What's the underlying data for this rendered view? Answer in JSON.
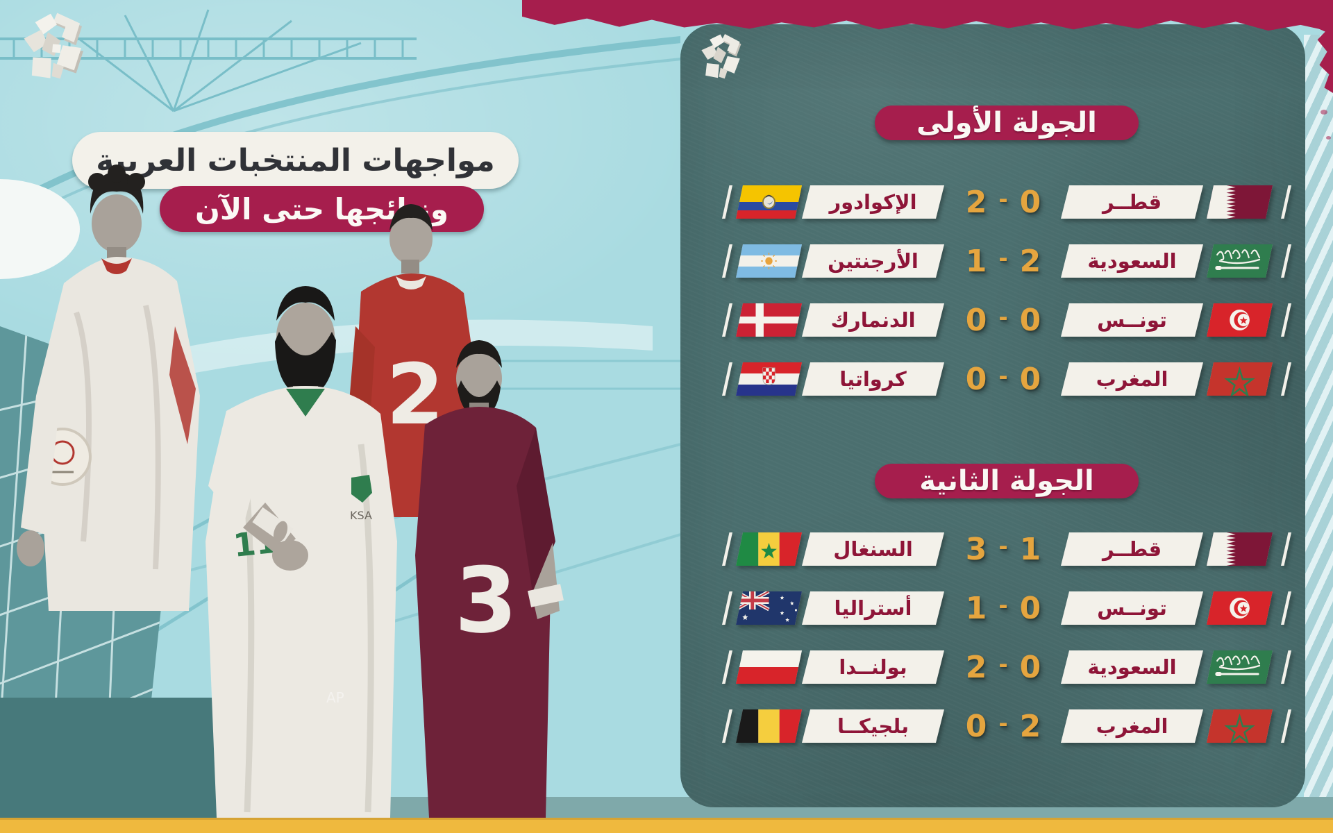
{
  "page": {
    "title_line1": "مواجهات المنتخبات العربية",
    "title_line2": "ونتائجها حتى الآن",
    "score_separator": "-"
  },
  "collage": {
    "jersey_number_morocco": "2",
    "jersey_number_qatar": "3",
    "jersey_number_saudi": "11",
    "saudi_badge": "KSA",
    "photo_credit": "AP"
  },
  "colors": {
    "crimson": "#A61E4D",
    "maroon_text": "#8E1538",
    "gold": "#E5A53F",
    "panel_teal": "#4B6F6F",
    "sky_blue": "#A9DBE1",
    "strip_yellow": "#EFB93E",
    "plate_white": "#F3F1EA"
  },
  "sections": [
    {
      "title": "الجولة الأولى",
      "matches": [
        {
          "home_team": "قطــر",
          "home_flag": "qatar",
          "home_score": "0",
          "away_score": "2",
          "away_team": "الإكوادور",
          "away_flag": "ecuador"
        },
        {
          "home_team": "السعودية",
          "home_flag": "saudi",
          "home_score": "2",
          "away_score": "1",
          "away_team": "الأرجنتين",
          "away_flag": "argentina"
        },
        {
          "home_team": "تونــس",
          "home_flag": "tunisia",
          "home_score": "0",
          "away_score": "0",
          "away_team": "الدنمارك",
          "away_flag": "denmark"
        },
        {
          "home_team": "المغرب",
          "home_flag": "morocco",
          "home_score": "0",
          "away_score": "0",
          "away_team": "كرواتيا",
          "away_flag": "croatia"
        }
      ]
    },
    {
      "title": "الجولة الثانية",
      "matches": [
        {
          "home_team": "قطــر",
          "home_flag": "qatar",
          "home_score": "1",
          "away_score": "3",
          "away_team": "السنغال",
          "away_flag": "senegal"
        },
        {
          "home_team": "تونــس",
          "home_flag": "tunisia",
          "home_score": "0",
          "away_score": "1",
          "away_team": "أستراليا",
          "away_flag": "australia"
        },
        {
          "home_team": "السعودية",
          "home_flag": "saudi",
          "home_score": "0",
          "away_score": "2",
          "away_team": "بولنــدا",
          "away_flag": "poland"
        },
        {
          "home_team": "المغرب",
          "home_flag": "morocco",
          "home_score": "2",
          "away_score": "0",
          "away_team": "بلجيكــا",
          "away_flag": "belgium"
        }
      ]
    }
  ]
}
